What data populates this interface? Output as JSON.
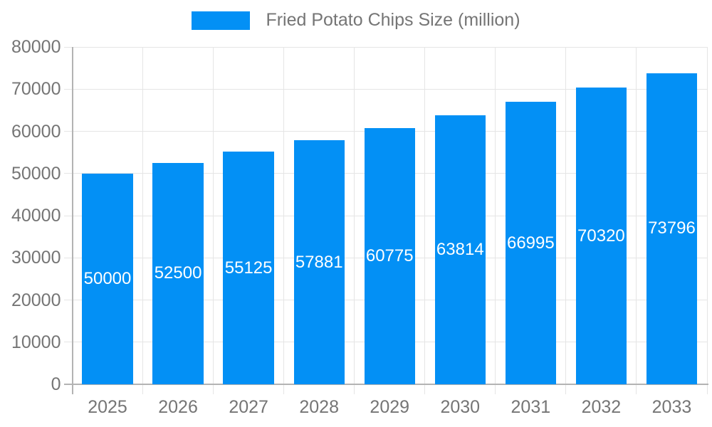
{
  "chart_data": {
    "type": "bar",
    "title": "Fried Potato Chips Size (million)",
    "categories": [
      "2025",
      "2026",
      "2027",
      "2028",
      "2029",
      "2030",
      "2031",
      "2032",
      "2033"
    ],
    "values": [
      50000,
      52500,
      55125,
      57881,
      60775,
      63814,
      66995,
      70320,
      73796
    ],
    "ylim": [
      0,
      80000
    ],
    "ytick_step": 10000,
    "ytick_labels": [
      "0",
      "10000",
      "20000",
      "30000",
      "40000",
      "50000",
      "60000",
      "70000",
      "80000"
    ],
    "grid": true,
    "legend_position": "top",
    "value_labels_position": "inside-center",
    "colors": {
      "bar": "#0390f5",
      "value_label": "#ffffff",
      "axis_text": "#757575",
      "grid_line": "#e5e5e5",
      "axis_line": "#b3b3b3"
    }
  }
}
